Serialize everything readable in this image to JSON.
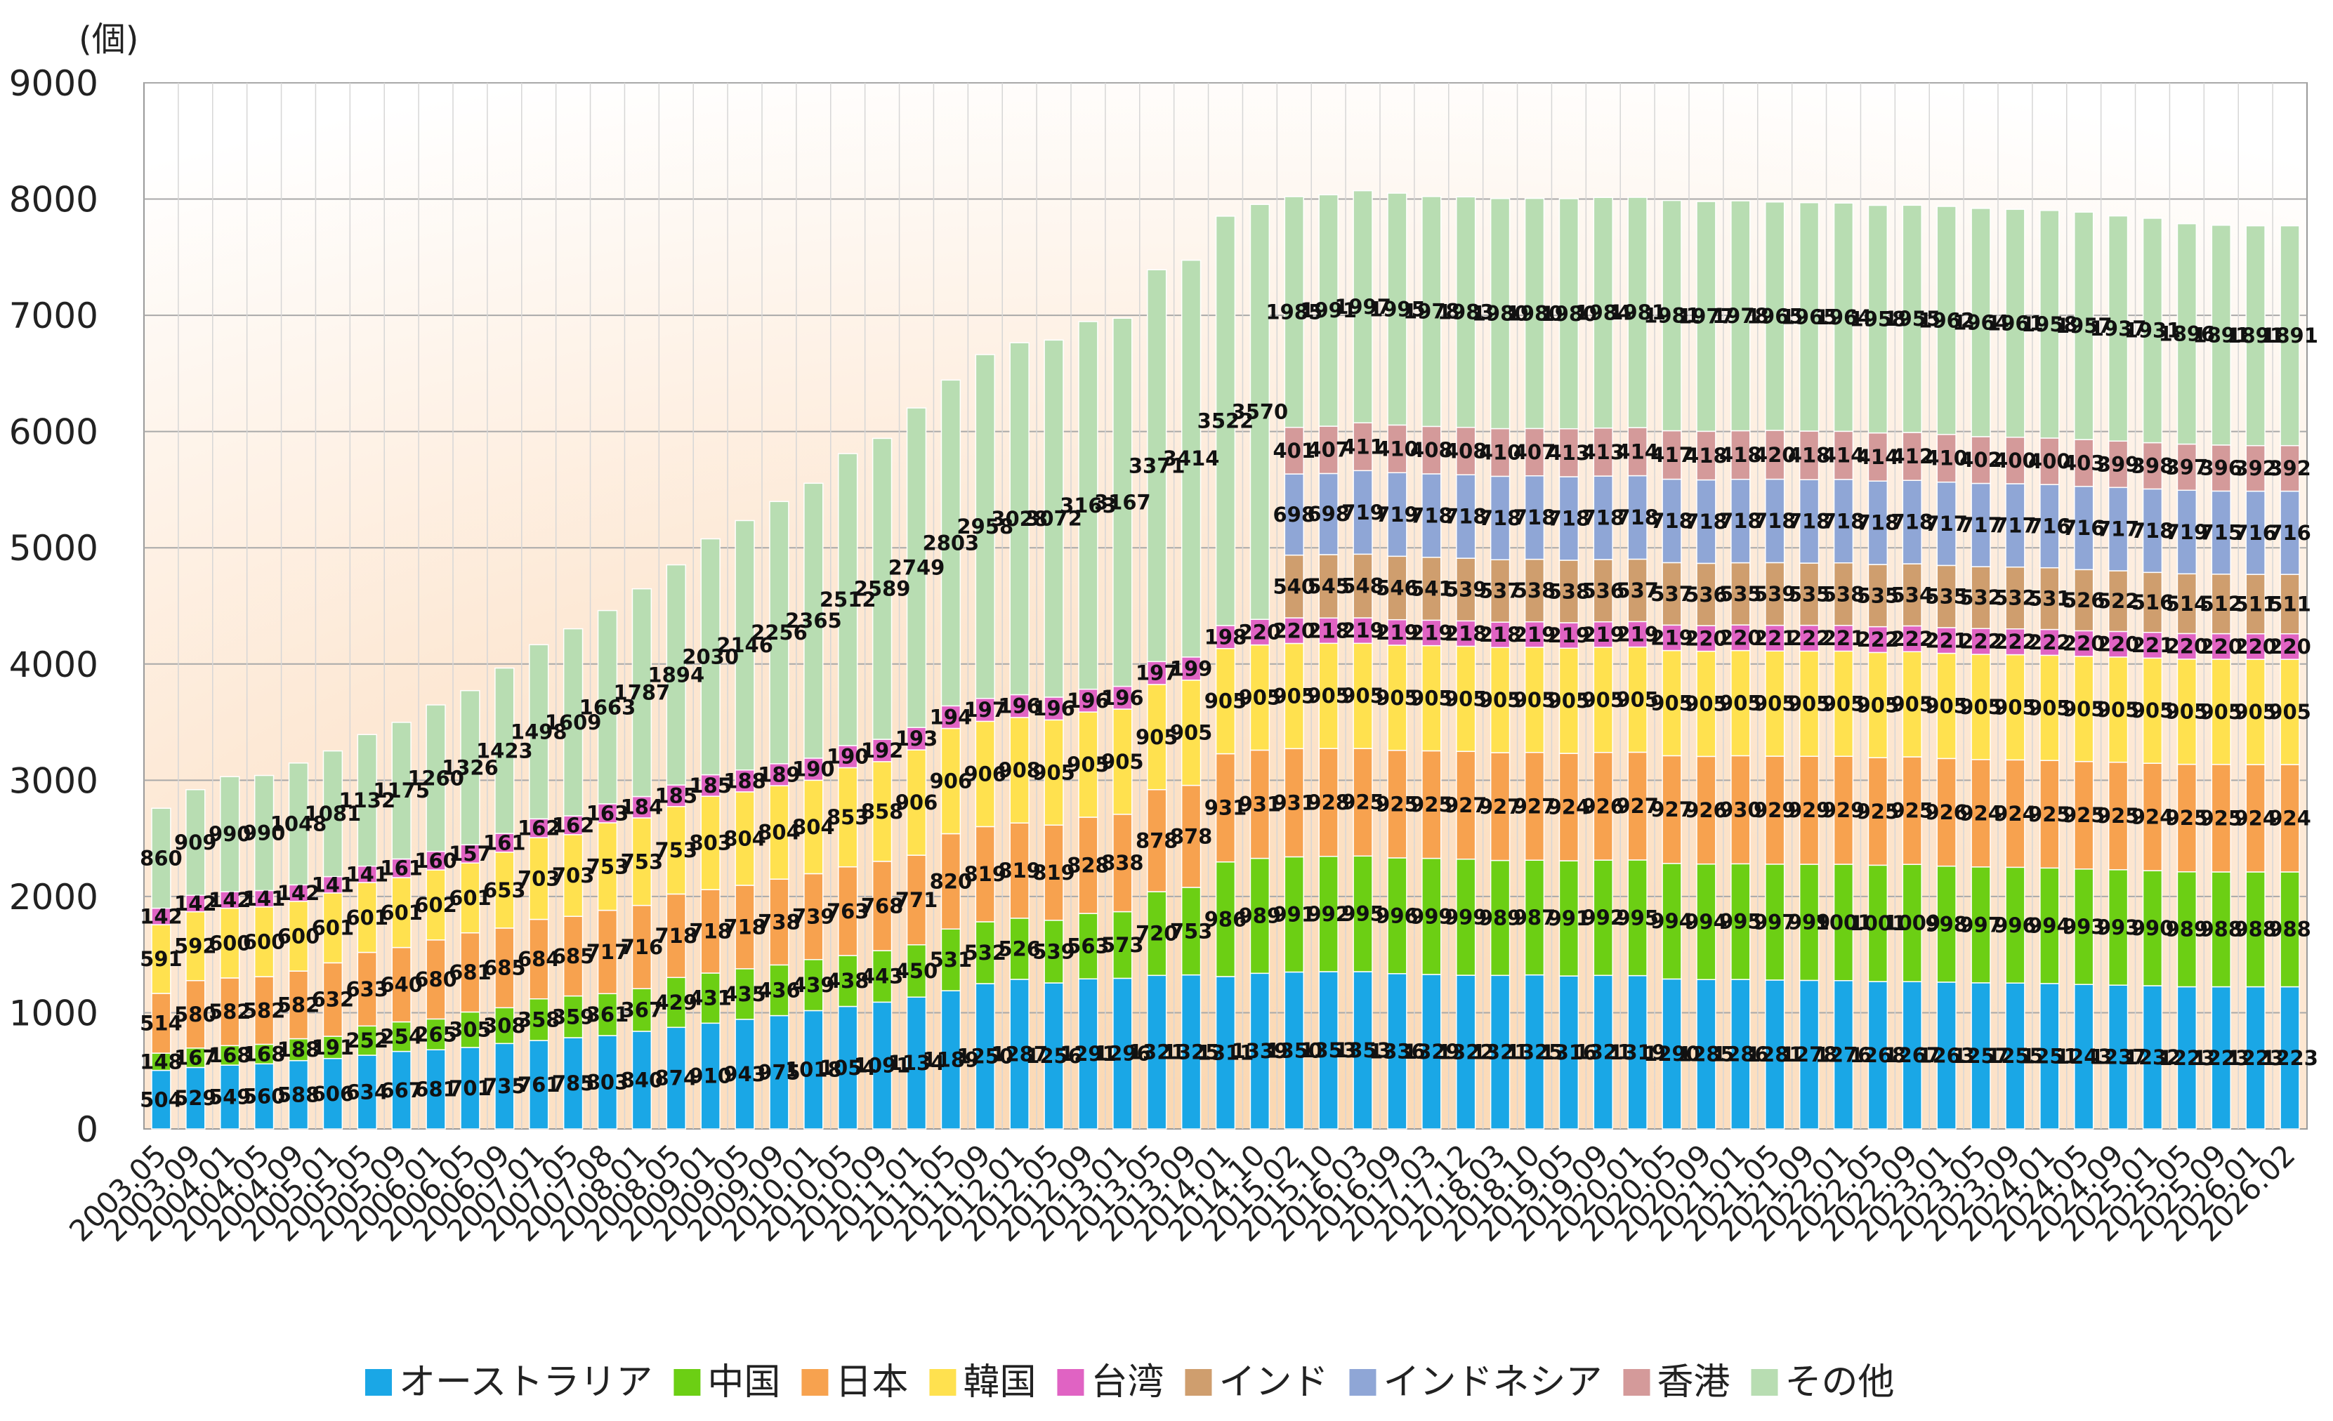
{
  "chart_data": {
    "type": "bar",
    "stacked": true,
    "y_unit": "(個)",
    "ylim": [
      0,
      9000
    ],
    "yticks": [
      0,
      1000,
      2000,
      3000,
      4000,
      5000,
      6000,
      7000,
      8000,
      9000
    ],
    "grid": true,
    "legend_position": "bottom",
    "categories": [
      "2003.05",
      "2003.09",
      "2004.01",
      "2004.05",
      "2004.09",
      "2005.01",
      "2005.05",
      "2005.09",
      "2006.01",
      "2006.05",
      "2006.09",
      "2007.01",
      "2007.05",
      "2007.08",
      "2008.01",
      "2008.05",
      "2009.01",
      "2009.05",
      "2009.09",
      "2010.01",
      "2010.05",
      "2010.09",
      "2011.01",
      "2011.05",
      "2011.09",
      "2012.01",
      "2012.05",
      "2012.09",
      "2013.01",
      "2013.05",
      "2013.09",
      "2014.01",
      "2014.10",
      "2015.02",
      "2015.10",
      "2016.03",
      "2016.09",
      "2017.03",
      "2017.12",
      "2018.03",
      "2018.10",
      "2019.05",
      "2019.09",
      "2020.01",
      "2020.05",
      "2020.09",
      "2021.01",
      "2021.05",
      "2021.09",
      "2022.01",
      "2022.05",
      "2022.09",
      "2023.01",
      "2023.05",
      "2023.09",
      "2024.01",
      "2024.05",
      "2024.09",
      "2025.01",
      "2025.05",
      "2025.09",
      "2026.01",
      "2026.02"
    ],
    "series": [
      {
        "name": "オーストラリア",
        "color": "#1aa7e6",
        "values": [
          504,
          529,
          549,
          560,
          588,
          606,
          634,
          667,
          681,
          701,
          735,
          761,
          785,
          803,
          840,
          874,
          910,
          943,
          975,
          1018,
          1054,
          1091,
          1134,
          1189,
          1250,
          1287,
          1256,
          1291,
          1296,
          1321,
          1325,
          1311,
          1339,
          1350,
          1353,
          1353,
          1336,
          1329,
          1322,
          1321,
          1325,
          1316,
          1321,
          1319,
          1290,
          1285,
          1286,
          1281,
          1278,
          1276,
          1268,
          1267,
          1263,
          1257,
          1255,
          1251,
          1243,
          1237,
          1232,
          1223,
          1223,
          1223,
          1223
        ]
      },
      {
        "name": "中国",
        "color": "#6ccf14",
        "values": [
          148,
          167,
          168,
          168,
          188,
          191,
          252,
          254,
          265,
          305,
          308,
          358,
          359,
          361,
          367,
          429,
          431,
          435,
          436,
          439,
          438,
          443,
          450,
          531,
          532,
          526,
          539,
          563,
          573,
          720,
          753,
          986,
          989,
          991,
          992,
          995,
          996,
          999,
          999,
          989,
          987,
          991,
          992,
          995,
          994,
          994,
          995,
          997,
          999,
          1001,
          1001,
          1009,
          998,
          997,
          996,
          994,
          993,
          993,
          990,
          989,
          988,
          988,
          988
        ]
      },
      {
        "name": "日本",
        "color": "#f7a24f",
        "values": [
          514,
          580,
          582,
          582,
          582,
          632,
          633,
          640,
          680,
          681,
          685,
          684,
          685,
          717,
          716,
          718,
          718,
          718,
          738,
          739,
          763,
          768,
          771,
          820,
          819,
          819,
          819,
          828,
          838,
          878,
          878,
          931,
          931,
          931,
          928,
          925,
          925,
          925,
          927,
          927,
          927,
          924,
          926,
          927,
          927,
          926,
          930,
          929,
          929,
          929,
          925,
          925,
          926,
          924,
          924,
          925,
          925,
          925,
          924,
          925,
          925,
          924,
          924
        ]
      },
      {
        "name": "韓国",
        "color": "#ffe14f",
        "values": [
          591,
          592,
          600,
          600,
          600,
          601,
          601,
          601,
          602,
          601,
          653,
          703,
          703,
          753,
          753,
          753,
          803,
          804,
          804,
          804,
          853,
          858,
          906,
          906,
          906,
          908,
          905,
          905,
          905,
          905,
          905,
          905,
          905,
          905,
          905,
          905,
          905,
          905,
          905,
          905,
          905,
          905,
          905,
          905,
          905,
          905,
          905,
          905,
          905,
          905,
          905,
          905,
          905,
          905,
          905,
          905,
          905,
          905,
          905,
          905,
          905,
          905,
          905
        ]
      },
      {
        "name": "台湾",
        "color": "#e063c3",
        "values": [
          142,
          142,
          142,
          141,
          142,
          141,
          141,
          161,
          160,
          157,
          161,
          162,
          162,
          163,
          184,
          185,
          185,
          188,
          189,
          190,
          190,
          192,
          193,
          194,
          197,
          196,
          196,
          196,
          196,
          197,
          199,
          198,
          220,
          220,
          218,
          219,
          219,
          219,
          218,
          218,
          219,
          219,
          219,
          219,
          219,
          220,
          220,
          221,
          222,
          221,
          222,
          222,
          221,
          222,
          222,
          222,
          220,
          220,
          221,
          220,
          220,
          220,
          220
        ]
      },
      {
        "name": "インド",
        "color": "#cf9e6e",
        "values": [
          0,
          0,
          0,
          0,
          0,
          0,
          0,
          0,
          0,
          0,
          0,
          0,
          0,
          0,
          0,
          0,
          0,
          0,
          0,
          0,
          0,
          0,
          0,
          0,
          0,
          0,
          0,
          0,
          0,
          0,
          0,
          0,
          0,
          540,
          545,
          548,
          546,
          541,
          539,
          537,
          538,
          538,
          536,
          537,
          537,
          536,
          535,
          539,
          535,
          538,
          535,
          534,
          535,
          532,
          532,
          531,
          526,
          522,
          516,
          514,
          512,
          511,
          511
        ]
      },
      {
        "name": "インドネシア",
        "color": "#8fa6d6",
        "values": [
          0,
          0,
          0,
          0,
          0,
          0,
          0,
          0,
          0,
          0,
          0,
          0,
          0,
          0,
          0,
          0,
          0,
          0,
          0,
          0,
          0,
          0,
          0,
          0,
          0,
          0,
          0,
          0,
          0,
          0,
          0,
          0,
          0,
          698,
          698,
          719,
          719,
          718,
          718,
          718,
          718,
          718,
          718,
          718,
          718,
          718,
          718,
          718,
          718,
          718,
          718,
          718,
          717,
          717,
          717,
          716,
          716,
          717,
          718,
          719,
          715,
          716,
          716
        ]
      },
      {
        "name": "香港",
        "color": "#d49a9a",
        "values": [
          0,
          0,
          0,
          0,
          0,
          0,
          0,
          0,
          0,
          0,
          0,
          0,
          0,
          0,
          0,
          0,
          0,
          0,
          0,
          0,
          0,
          0,
          0,
          0,
          0,
          0,
          0,
          0,
          0,
          0,
          0,
          0,
          0,
          401,
          407,
          411,
          410,
          408,
          408,
          410,
          407,
          413,
          413,
          414,
          417,
          418,
          418,
          420,
          418,
          414,
          414,
          412,
          410,
          402,
          400,
          400,
          403,
          399,
          398,
          397,
          396,
          392,
          392
        ]
      },
      {
        "name": "その他",
        "color": "#b8ddb2",
        "values": [
          860,
          909,
          990,
          990,
          1048,
          1081,
          1132,
          1175,
          1260,
          1326,
          1423,
          1498,
          1609,
          1663,
          1787,
          1894,
          2030,
          2146,
          2256,
          2365,
          2512,
          2589,
          2749,
          2803,
          2958,
          3028,
          3072,
          3163,
          3167,
          3371,
          3414,
          3522,
          3570,
          1985,
          1991,
          1997,
          1995,
          1978,
          1983,
          1980,
          1980,
          1980,
          1984,
          1981,
          1981,
          1977,
          1978,
          1965,
          1965,
          1964,
          1958,
          1955,
          1962,
          1964,
          1961,
          1958,
          1957,
          1937,
          1931,
          1896,
          1891,
          1891,
          1891
        ]
      }
    ]
  }
}
